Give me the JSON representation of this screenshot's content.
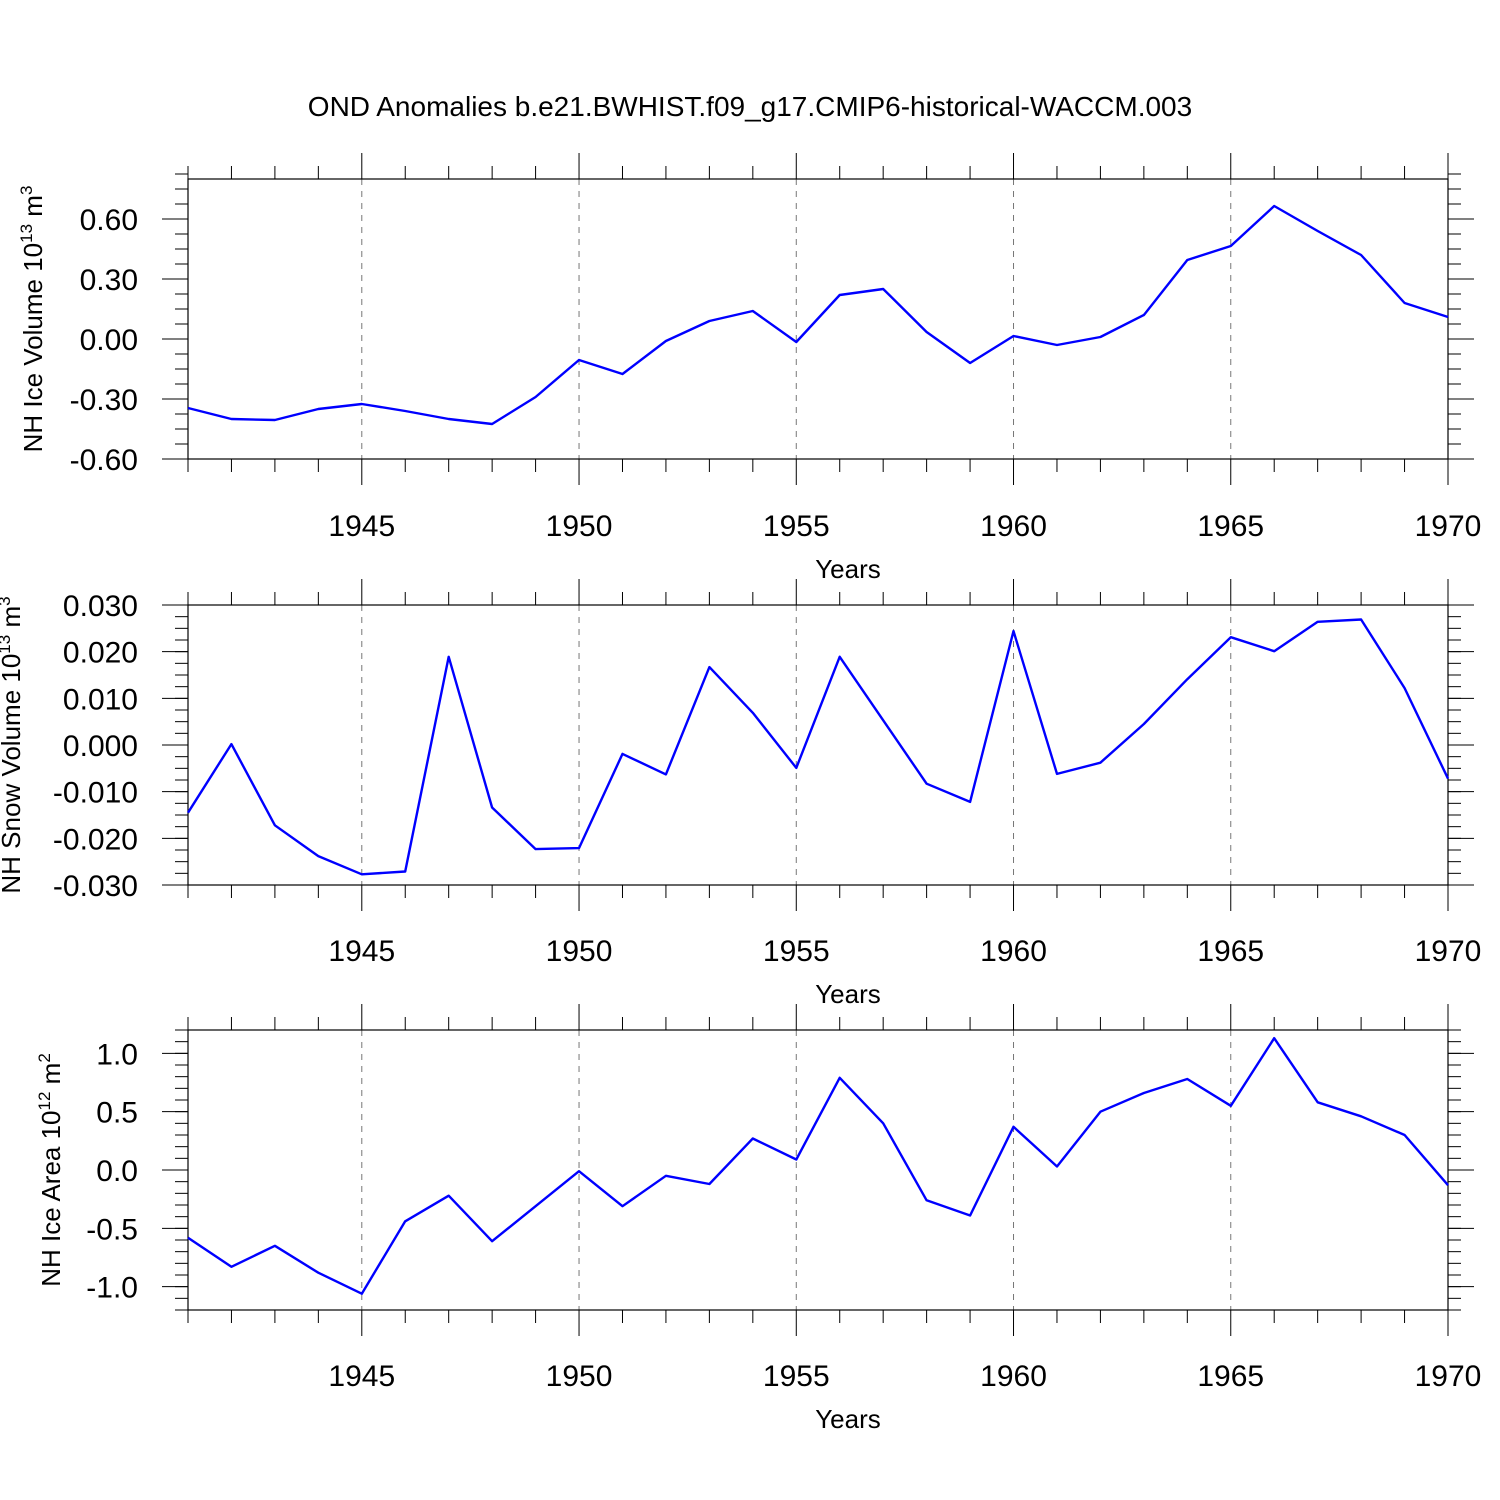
{
  "title": "OND Anomalies b.e21.BWHIST.f09_g17.CMIP6-historical-WACCM.003",
  "chart_data": [
    {
      "type": "line",
      "ylabel": "NH Ice Volume 10",
      "ylabel_sup": "13",
      "ylabel_unit": " m",
      "ylabel_unit_sup": "3",
      "xlabel": "Years",
      "xlim": [
        1941,
        1970
      ],
      "ylim": [
        -0.6,
        0.8
      ],
      "yticks": [
        -0.6,
        -0.3,
        0.0,
        0.3,
        0.6
      ],
      "ytick_labels": [
        "-0.60",
        "-0.30",
        "0.00",
        "0.30",
        "0.60"
      ],
      "yminor_step": 0.075,
      "xticks": [
        1945,
        1950,
        1955,
        1960,
        1965,
        1970
      ],
      "xtick_labels": [
        "1945",
        "1950",
        "1955",
        "1960",
        "1965",
        "1970"
      ],
      "grid_x": [
        1945,
        1950,
        1955,
        1960,
        1965
      ],
      "color": "#0000ff",
      "x": [
        1941,
        1942,
        1943,
        1944,
        1945,
        1946,
        1947,
        1948,
        1949,
        1950,
        1951,
        1952,
        1953,
        1954,
        1955,
        1956,
        1957,
        1958,
        1959,
        1960,
        1961,
        1962,
        1963,
        1964,
        1965,
        1966,
        1967,
        1968,
        1969,
        1970
      ],
      "y": [
        -0.345,
        -0.4,
        -0.405,
        -0.35,
        -0.325,
        -0.36,
        -0.4,
        -0.425,
        -0.29,
        -0.105,
        -0.175,
        -0.01,
        0.09,
        0.14,
        -0.015,
        0.22,
        0.25,
        0.035,
        -0.12,
        0.015,
        -0.03,
        0.01,
        0.12,
        0.395,
        0.465,
        0.665,
        0.54,
        0.42,
        0.18,
        0.11
      ]
    },
    {
      "type": "line",
      "ylabel": "NH Snow Volume 10",
      "ylabel_sup": "13",
      "ylabel_unit": " m",
      "ylabel_unit_sup": "3",
      "xlabel": "Years",
      "xlim": [
        1941,
        1970
      ],
      "ylim": [
        -0.03,
        0.03
      ],
      "yticks": [
        -0.03,
        -0.02,
        -0.01,
        0.0,
        0.01,
        0.02,
        0.03
      ],
      "ytick_labels": [
        "-0.030",
        "-0.020",
        "-0.010",
        "0.000",
        "0.010",
        "0.020",
        "0.030"
      ],
      "yminor_step": 0.0025,
      "xticks": [
        1945,
        1950,
        1955,
        1960,
        1965,
        1970
      ],
      "xtick_labels": [
        "1945",
        "1950",
        "1955",
        "1960",
        "1965",
        "1970"
      ],
      "grid_x": [
        1945,
        1950,
        1955,
        1960,
        1965
      ],
      "color": "#0000ff",
      "x": [
        1941,
        1942,
        1943,
        1944,
        1945,
        1946,
        1947,
        1948,
        1949,
        1950,
        1951,
        1952,
        1953,
        1954,
        1955,
        1956,
        1957,
        1958,
        1959,
        1960,
        1961,
        1962,
        1963,
        1964,
        1965,
        1966,
        1967,
        1968,
        1969,
        1970
      ],
      "y": [
        -0.0145,
        0.0002,
        -0.0172,
        -0.0238,
        -0.0277,
        -0.0271,
        0.0189,
        -0.0134,
        -0.0223,
        -0.0221,
        -0.0019,
        -0.0063,
        0.0167,
        0.0069,
        -0.0049,
        0.0189,
        0.0053,
        -0.0083,
        -0.0122,
        0.0244,
        -0.0062,
        -0.0038,
        0.0045,
        0.0141,
        0.0231,
        0.0201,
        0.0264,
        0.0269,
        0.0122,
        -0.0072
      ]
    },
    {
      "type": "line",
      "ylabel": "NH Ice Area 10",
      "ylabel_sup": "12",
      "ylabel_unit": " m",
      "ylabel_unit_sup": "2",
      "xlabel": "Years",
      "xlim": [
        1941,
        1970
      ],
      "ylim": [
        -1.2,
        1.2
      ],
      "yticks": [
        -1.0,
        -0.5,
        0.0,
        0.5,
        1.0
      ],
      "ytick_labels": [
        "-1.0",
        "-0.5",
        "0.0",
        "0.5",
        "1.0"
      ],
      "yminor_step": 0.1,
      "xticks": [
        1945,
        1950,
        1955,
        1960,
        1965,
        1970
      ],
      "xtick_labels": [
        "1945",
        "1950",
        "1955",
        "1960",
        "1965",
        "1970"
      ],
      "grid_x": [
        1945,
        1950,
        1955,
        1960,
        1965
      ],
      "color": "#0000ff",
      "x": [
        1941,
        1942,
        1943,
        1944,
        1945,
        1946,
        1947,
        1948,
        1949,
        1950,
        1951,
        1952,
        1953,
        1954,
        1955,
        1956,
        1957,
        1958,
        1959,
        1960,
        1961,
        1962,
        1963,
        1964,
        1965,
        1966,
        1967,
        1968,
        1969,
        1970
      ],
      "y": [
        -0.58,
        -0.83,
        -0.65,
        -0.88,
        -1.06,
        -0.44,
        -0.22,
        -0.61,
        -0.31,
        -0.01,
        -0.31,
        -0.05,
        -0.12,
        0.27,
        0.09,
        0.79,
        0.4,
        -0.26,
        -0.39,
        0.37,
        0.03,
        0.5,
        0.66,
        0.78,
        0.55,
        1.13,
        0.58,
        0.46,
        0.3,
        -0.13
      ]
    }
  ]
}
